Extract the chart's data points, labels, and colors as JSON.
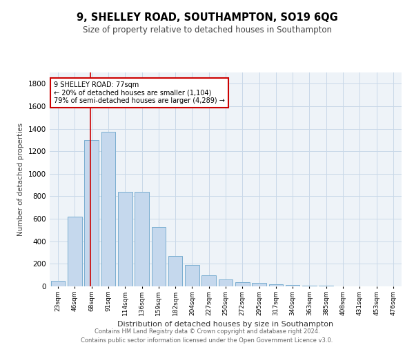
{
  "title": "9, SHELLEY ROAD, SOUTHAMPTON, SO19 6QG",
  "subtitle": "Size of property relative to detached houses in Southampton",
  "xlabel": "Distribution of detached houses by size in Southampton",
  "ylabel": "Number of detached properties",
  "categories": [
    "23sqm",
    "46sqm",
    "68sqm",
    "91sqm",
    "114sqm",
    "136sqm",
    "159sqm",
    "182sqm",
    "204sqm",
    "227sqm",
    "250sqm",
    "272sqm",
    "295sqm",
    "317sqm",
    "340sqm",
    "363sqm",
    "385sqm",
    "408sqm",
    "431sqm",
    "453sqm",
    "476sqm"
  ],
  "values": [
    50,
    620,
    1300,
    1370,
    840,
    840,
    530,
    270,
    190,
    100,
    62,
    35,
    30,
    20,
    10,
    6,
    5,
    3,
    2,
    1,
    1
  ],
  "bar_color": "#c5d8ed",
  "bar_edge_color": "#7aaed0",
  "grid_color": "#c8d8e8",
  "bg_color": "#eef3f8",
  "red_line_x": 1.92,
  "annotation_text": "9 SHELLEY ROAD: 77sqm\n← 20% of detached houses are smaller (1,104)\n79% of semi-detached houses are larger (4,289) →",
  "annotation_box_color": "#cc0000",
  "ylim": [
    0,
    1900
  ],
  "yticks": [
    0,
    200,
    400,
    600,
    800,
    1000,
    1200,
    1400,
    1600,
    1800
  ],
  "footer_line1": "Contains HM Land Registry data © Crown copyright and database right 2024.",
  "footer_line2": "Contains public sector information licensed under the Open Government Licence v3.0."
}
